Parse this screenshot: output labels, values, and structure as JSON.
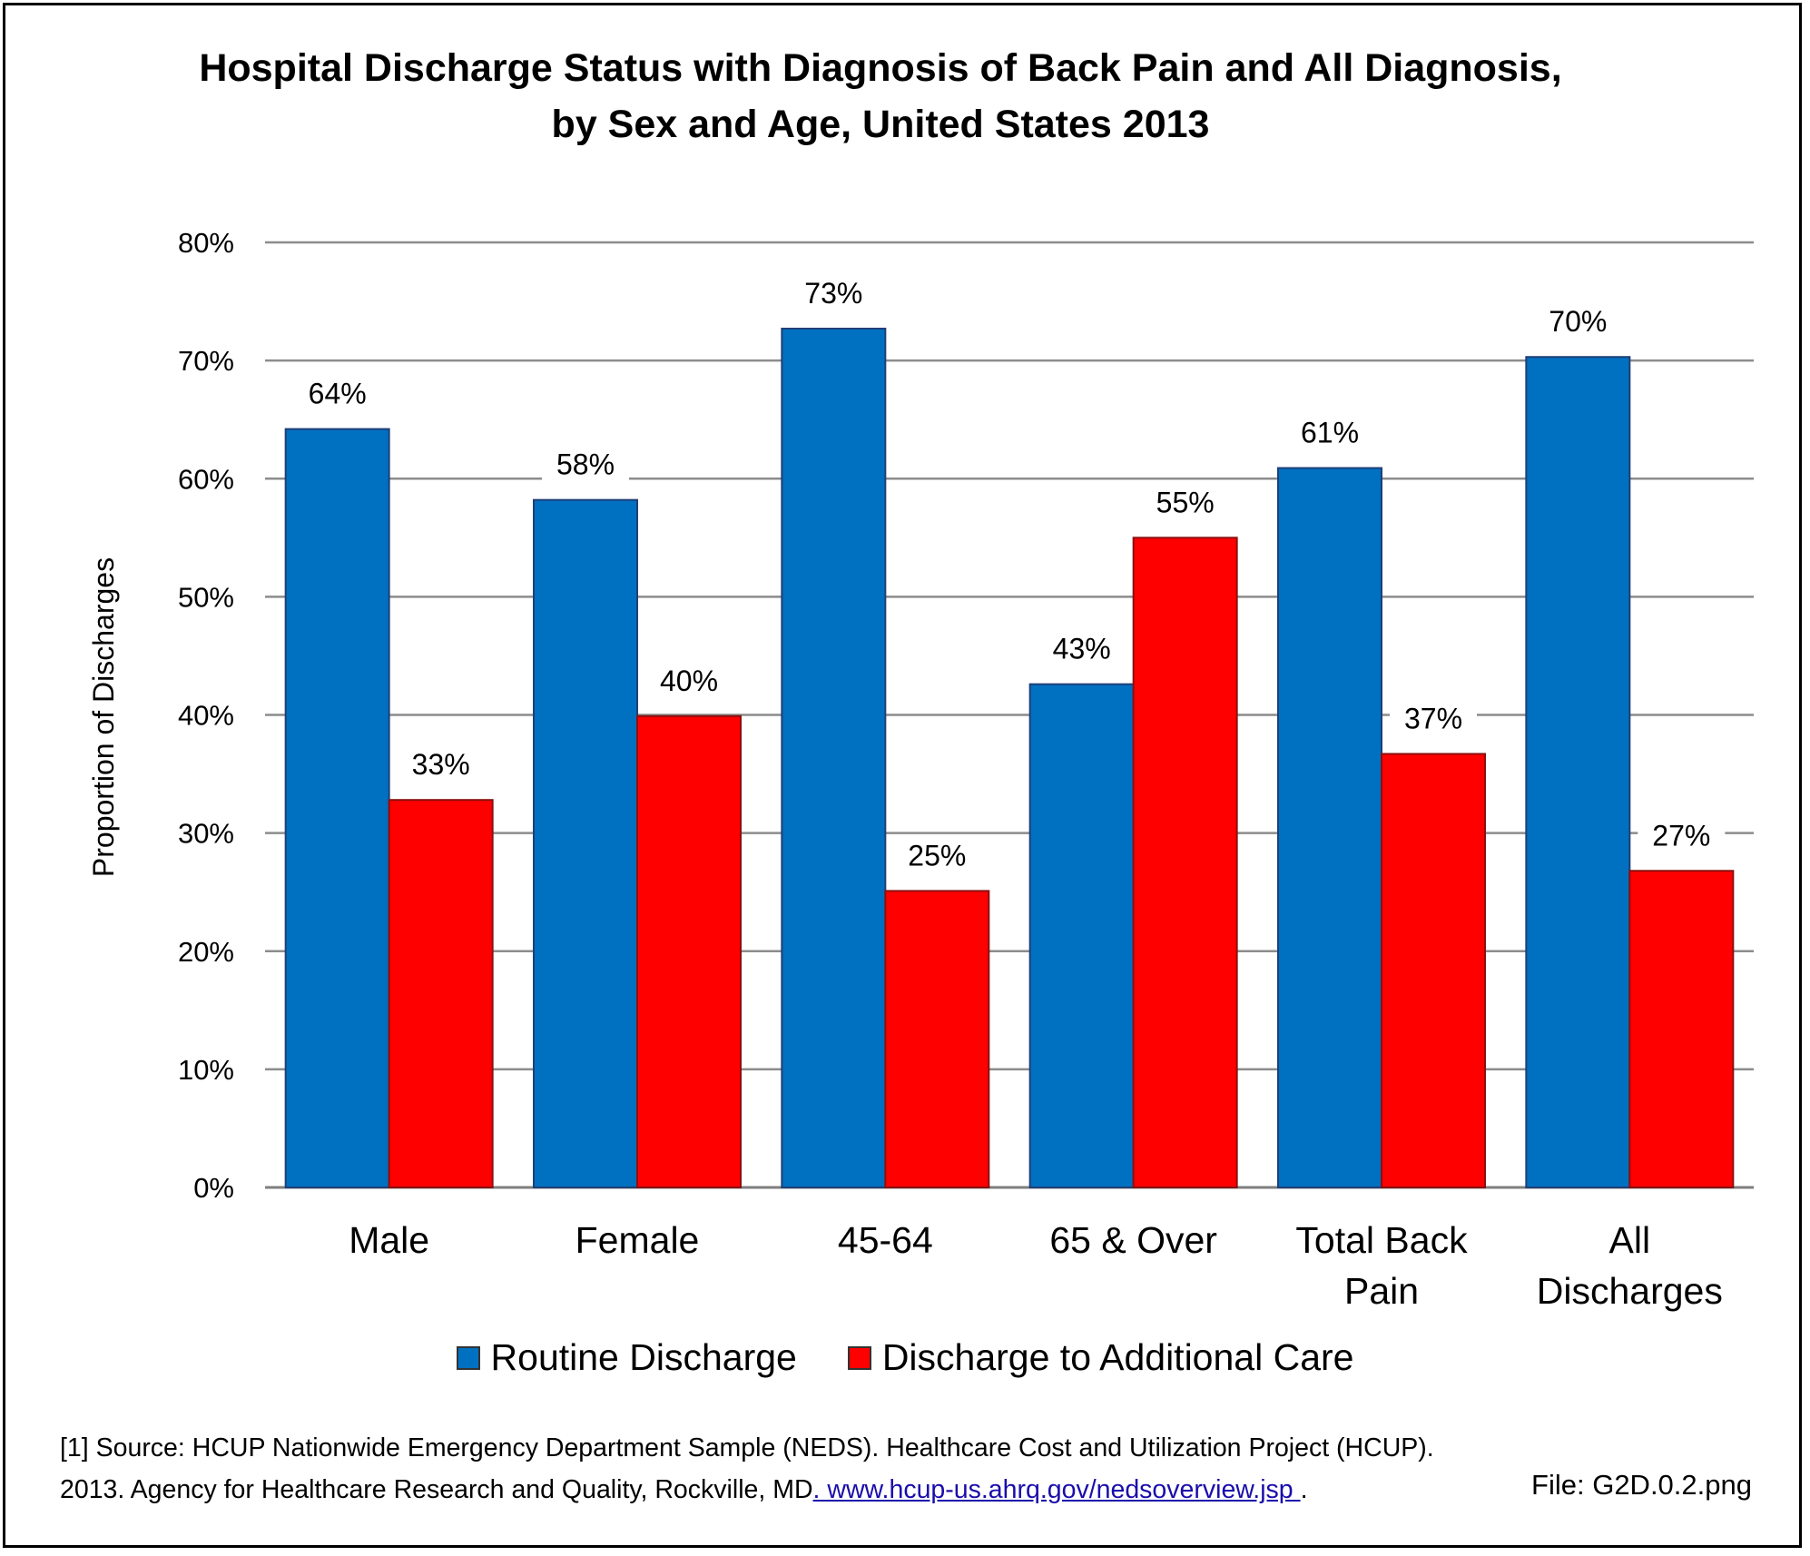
{
  "title_line1": "Hospital Discharge Status with Diagnosis of Back Pain and All Diagnosis,",
  "title_line2": "by Sex and Age, United States 2013",
  "footnote_line1": "[1] Source: HCUP Nationwide Emergency Department Sample (NEDS). Healthcare Cost and Utilization Project (HCUP).",
  "footnote_line2_text": "2013. Agency for Healthcare Research and Quality, Rockville, MD",
  "footnote_link": ". www.hcup-us.ahrq.gov/nedsoverview.jsp ",
  "footnote_end": ".",
  "file_label": "File: G2D.0.2.png",
  "chart_data": {
    "type": "bar",
    "title": "Hospital Discharge Status with Diagnosis of Back Pain and All Diagnosis, by Sex and Age, United States 2013",
    "ylabel": "Proportion of Discharges",
    "xlabel": "",
    "ylim": [
      0,
      80
    ],
    "yticks": [
      "0%",
      "10%",
      "20%",
      "30%",
      "40%",
      "50%",
      "60%",
      "70%",
      "80%"
    ],
    "grid": true,
    "legend_position": "bottom",
    "categories": [
      [
        "Male"
      ],
      [
        "Female"
      ],
      [
        "45-64"
      ],
      [
        "65 & Over"
      ],
      [
        "Total Back",
        "Pain"
      ],
      [
        "All",
        "Discharges"
      ]
    ],
    "series": [
      {
        "name": "Routine Discharge",
        "color": "#0070C0",
        "values": [
          64.2,
          58.2,
          72.7,
          42.6,
          60.9,
          70.3
        ],
        "labels": [
          "64%",
          "58%",
          "73%",
          "43%",
          "61%",
          "70%"
        ]
      },
      {
        "name": "Discharge to Additional Care",
        "color": "#FF0000",
        "values": [
          32.8,
          39.9,
          25.1,
          55.0,
          36.7,
          26.8
        ],
        "labels": [
          "33%",
          "40%",
          "25%",
          "55%",
          "37%",
          "27%"
        ]
      }
    ]
  }
}
